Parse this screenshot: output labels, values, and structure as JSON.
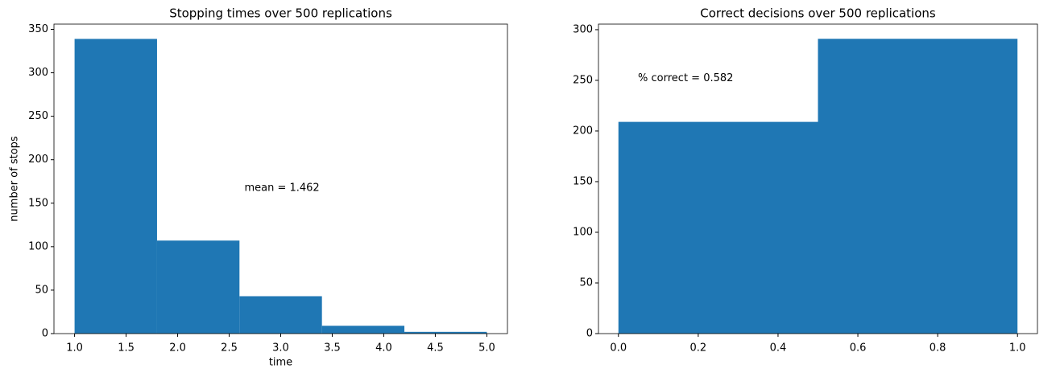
{
  "chart_data": [
    {
      "type": "histogram",
      "title": "Stopping times over 500 replications",
      "xlabel": "time",
      "ylabel": "number of stops",
      "bins": [
        1.0,
        1.8,
        2.6,
        3.4,
        4.2,
        5.0
      ],
      "counts": [
        339,
        107,
        43,
        9,
        2
      ],
      "color": "#1f77b4",
      "xlim": [
        0.8,
        5.2
      ],
      "ylim": [
        0,
        356
      ],
      "xticks": [
        {
          "value": 1.0,
          "label": "1.0"
        },
        {
          "value": 1.5,
          "label": "1.5"
        },
        {
          "value": 2.0,
          "label": "2.0"
        },
        {
          "value": 2.5,
          "label": "2.5"
        },
        {
          "value": 3.0,
          "label": "3.0"
        },
        {
          "value": 3.5,
          "label": "3.5"
        },
        {
          "value": 4.0,
          "label": "4.0"
        },
        {
          "value": 4.5,
          "label": "4.5"
        },
        {
          "value": 5.0,
          "label": "5.0"
        }
      ],
      "yticks": [
        0,
        50,
        100,
        150,
        200,
        250,
        300,
        350
      ],
      "annotation": "mean = 1.462"
    },
    {
      "type": "histogram",
      "title": "Correct decisions over 500 replications",
      "bins": [
        0.0,
        0.5,
        1.0
      ],
      "counts": [
        209,
        291
      ],
      "color": "#1f77b4",
      "xlim": [
        -0.05,
        1.05
      ],
      "ylim": [
        0,
        305.5
      ],
      "xticks": [
        {
          "value": 0.0,
          "label": "0.0"
        },
        {
          "value": 0.2,
          "label": "0.2"
        },
        {
          "value": 0.4,
          "label": "0.4"
        },
        {
          "value": 0.6,
          "label": "0.6"
        },
        {
          "value": 0.8,
          "label": "0.8"
        },
        {
          "value": 1.0,
          "label": "1.0"
        }
      ],
      "yticks": [
        0,
        50,
        100,
        150,
        200,
        250,
        300
      ],
      "annotation": "% correct = 0.582"
    }
  ]
}
